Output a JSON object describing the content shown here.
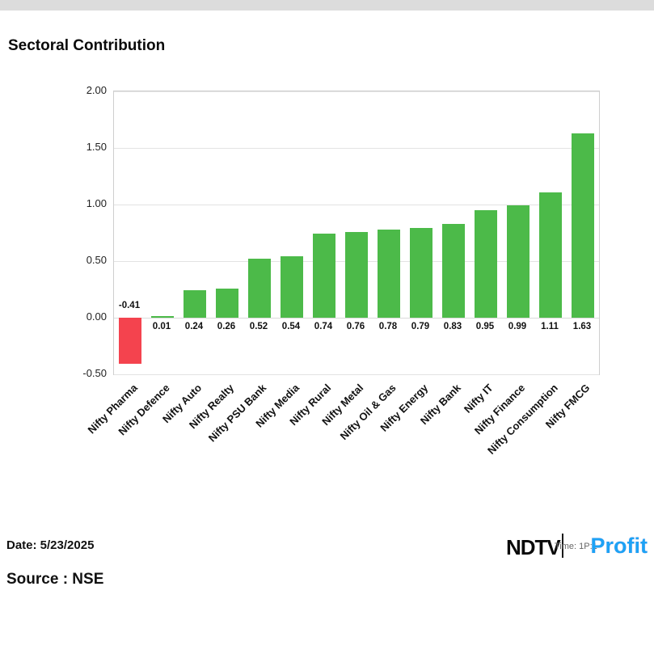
{
  "title": "Sectoral Contribution",
  "chart_data": {
    "type": "bar",
    "title": "Sectoral Contribution",
    "categories": [
      "Nifty Pharma",
      "Nifty Defence",
      "Nifty Auto",
      "Nifty Realty",
      "Nifty PSU Bank",
      "Nifty Media",
      "Nifty Rural",
      "Nifty Metal",
      "Nifty Oil & Gas",
      "Nifty Energy",
      "Nifty Bank",
      "Nifty IT",
      "Nifty Finance",
      "Nifty Consumption",
      "Nifty FMCG"
    ],
    "values": [
      -0.41,
      0.01,
      0.24,
      0.26,
      0.52,
      0.54,
      0.74,
      0.76,
      0.78,
      0.79,
      0.83,
      0.95,
      0.99,
      1.11,
      1.63
    ],
    "value_labels": [
      "-0.41",
      "0.01",
      "0.24",
      "0.26",
      "0.52",
      "0.54",
      "0.74",
      "0.76",
      "0.78",
      "0.79",
      "0.83",
      "0.95",
      "0.99",
      "1.11",
      "1.63"
    ],
    "xlabel": "",
    "ylabel": "",
    "ylim": [
      -0.5,
      2.0
    ],
    "ytick_labels": [
      "2.00",
      "1.50",
      "1.00",
      "0.50",
      "0.00",
      "-0.50"
    ],
    "ytick_values": [
      2.0,
      1.5,
      1.0,
      0.5,
      0.0,
      -0.5
    ],
    "grid": true,
    "legend": "none",
    "positive_color": "#4cba49",
    "negative_color": "#f4434e"
  },
  "footer": {
    "date": "Date: 5/23/2025",
    "source": "Source : NSE",
    "logo_ndtv": "NDTV",
    "time_text": "Time: 1P:1",
    "logo_profit": "Profit"
  }
}
